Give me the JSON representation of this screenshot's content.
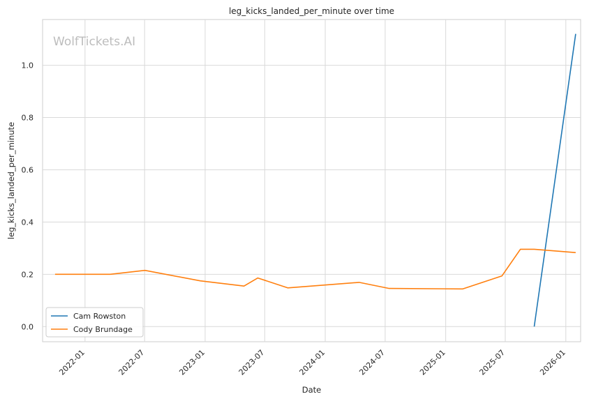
{
  "chart_data": {
    "type": "line",
    "title": "leg_kicks_landed_per_minute over time",
    "xlabel": "Date",
    "ylabel": "leg_kicks_landed_per_minute",
    "watermark": "WolfTickets.AI",
    "x_ticks": [
      "2022-01",
      "2022-07",
      "2023-01",
      "2023-07",
      "2024-01",
      "2024-07",
      "2025-01",
      "2025-07",
      "2026-01"
    ],
    "y_ticks": [
      0.0,
      0.2,
      0.4,
      0.6,
      0.8,
      1.0
    ],
    "y_tick_labels": [
      "0.0",
      "0.2",
      "0.4",
      "0.6",
      "0.8",
      "1.0"
    ],
    "xlim": [
      "2021-08-25",
      "2026-02-15"
    ],
    "ylim": [
      -0.058,
      1.175
    ],
    "grid": true,
    "legend_position": "lower-left",
    "series": [
      {
        "name": "Cam Rowston",
        "color": "#1f77b4",
        "points": [
          {
            "x": "2025-09-27",
            "y": 0.0
          },
          {
            "x": "2026-01-31",
            "y": 1.12
          }
        ]
      },
      {
        "name": "Cody Brundage",
        "color": "#ff7f0e",
        "points": [
          {
            "x": "2021-10-02",
            "y": 0.2
          },
          {
            "x": "2022-03-19",
            "y": 0.2
          },
          {
            "x": "2022-07-02",
            "y": 0.215
          },
          {
            "x": "2022-12-17",
            "y": 0.175
          },
          {
            "x": "2023-04-29",
            "y": 0.155
          },
          {
            "x": "2023-06-10",
            "y": 0.186
          },
          {
            "x": "2023-09-09",
            "y": 0.148
          },
          {
            "x": "2024-04-13",
            "y": 0.169
          },
          {
            "x": "2024-07-13",
            "y": 0.146
          },
          {
            "x": "2025-02-22",
            "y": 0.144
          },
          {
            "x": "2025-06-21",
            "y": 0.194
          },
          {
            "x": "2025-08-16",
            "y": 0.296
          },
          {
            "x": "2025-09-27",
            "y": 0.296
          },
          {
            "x": "2026-01-31",
            "y": 0.283
          }
        ]
      }
    ]
  }
}
